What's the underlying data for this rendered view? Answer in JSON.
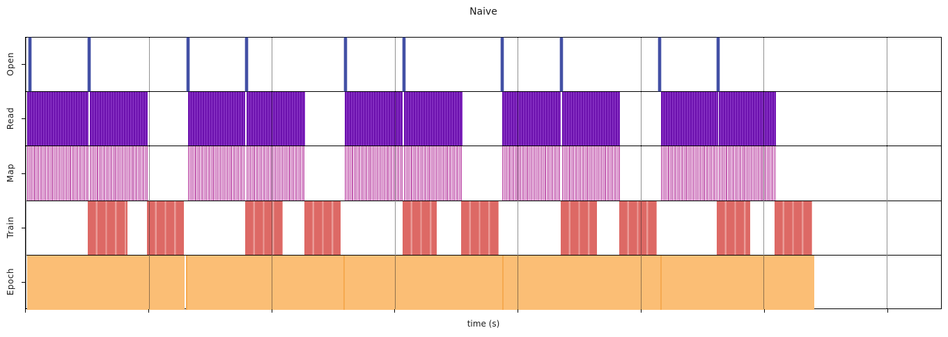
{
  "title": "Naive",
  "xlabel": "time (s)",
  "colors": {
    "open_spike": "#4350A5",
    "read_dark": "#6A0FAC",
    "read_light": "#8A35C6",
    "map_stripe": "#C158AE",
    "train_base": "#DD6965",
    "train_light": "#EA9B97",
    "epoch_fill": "#FBBE75",
    "epoch_edge": "#F5A94F",
    "axis": "#000000",
    "gridline": "#222222"
  },
  "chart_data": {
    "type": "timeline",
    "title": "Naive",
    "xlabel": "time (s)",
    "legend": "none",
    "x_axis": {
      "tick_labels_visible": false,
      "num_ticks": 8,
      "tick_positions_pct": [
        0,
        13.44,
        26.87,
        40.31,
        53.74,
        67.18,
        80.61,
        94.05
      ],
      "gridlines": "vertical-dotted",
      "note": "all positions are percent of visible x-range; no numeric tick labels are rendered in the screenshot"
    },
    "rows": [
      {
        "label": "Open",
        "style": "spike",
        "color": "#4350A5",
        "spike_width_pct": 0.3,
        "spikes_pct": [
          0.46,
          6.91,
          17.74,
          24.13,
          34.92,
          41.3,
          52.09,
          58.51,
          69.26,
          75.65
        ]
      },
      {
        "label": "Read",
        "style": "striped-dense",
        "color": "#6A0FAC",
        "intervals_pct": [
          [
            0.15,
            6.84
          ],
          [
            6.99,
            13.3
          ],
          [
            17.71,
            24.01
          ],
          [
            24.16,
            30.55
          ],
          [
            34.88,
            41.19
          ],
          [
            41.34,
            47.72
          ],
          [
            52.05,
            58.43
          ],
          [
            58.59,
            64.89
          ],
          [
            69.38,
            75.61
          ],
          [
            75.76,
            81.99
          ]
        ]
      },
      {
        "label": "Map",
        "style": "striped-sparse",
        "color": "#C158AE",
        "intervals_pct": [
          [
            0.15,
            6.84
          ],
          [
            6.99,
            13.3
          ],
          [
            17.71,
            24.01
          ],
          [
            24.16,
            30.55
          ],
          [
            34.88,
            41.19
          ],
          [
            41.34,
            47.72
          ],
          [
            52.05,
            58.43
          ],
          [
            58.59,
            64.89
          ],
          [
            69.38,
            75.61
          ],
          [
            75.76,
            81.99
          ]
        ]
      },
      {
        "label": "Train",
        "style": "substriped",
        "color": "#DD6965",
        "intervals_pct": [
          [
            6.76,
            11.09
          ],
          [
            13.22,
            17.25
          ],
          [
            23.94,
            28.12
          ],
          [
            30.47,
            34.42
          ],
          [
            41.19,
            44.91
          ],
          [
            47.57,
            51.67
          ],
          [
            58.43,
            62.39
          ],
          [
            64.82,
            68.92
          ],
          [
            75.46,
            79.18
          ],
          [
            81.84,
            85.94
          ]
        ]
      },
      {
        "label": "Epoch",
        "style": "solid",
        "color": "#FBBE75",
        "intervals_pct": [
          [
            0.15,
            17.33
          ],
          [
            17.48,
            34.65
          ],
          [
            34.73,
            51.9
          ],
          [
            52.05,
            69.15
          ],
          [
            69.3,
            86.02
          ]
        ]
      }
    ]
  }
}
